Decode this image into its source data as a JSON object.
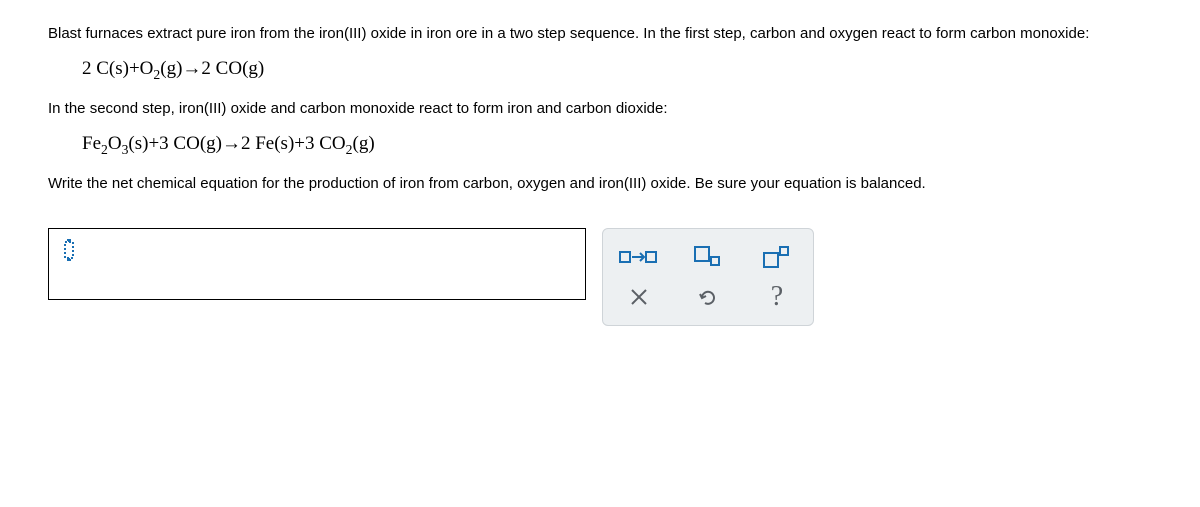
{
  "text": {
    "p1": "Blast furnaces extract pure iron from the iron(III) oxide in iron ore in a two step sequence. In the first step, carbon and oxygen react to form carbon monoxide:",
    "p2": "In the second step, iron(III) oxide and carbon monoxide react to form iron and carbon dioxide:",
    "p3": "Write the net chemical equation for the production of iron from carbon, oxygen and iron(III) oxide. Be sure your equation is balanced."
  },
  "equations": {
    "eq1_html": "2 C(s)+O<sub>2</sub>(g)&rarr;2 CO(g)",
    "eq2_html": "Fe<sub>2</sub>O<sub>3</sub>(s)+3 CO(g)&rarr;2 Fe(s)+3 CO<sub>2</sub>(g)"
  },
  "toolbox": {
    "accent": "#1a6fb3",
    "bg": "#edf0f2",
    "border": "#cfd4d8",
    "muted": "#5b6066"
  }
}
